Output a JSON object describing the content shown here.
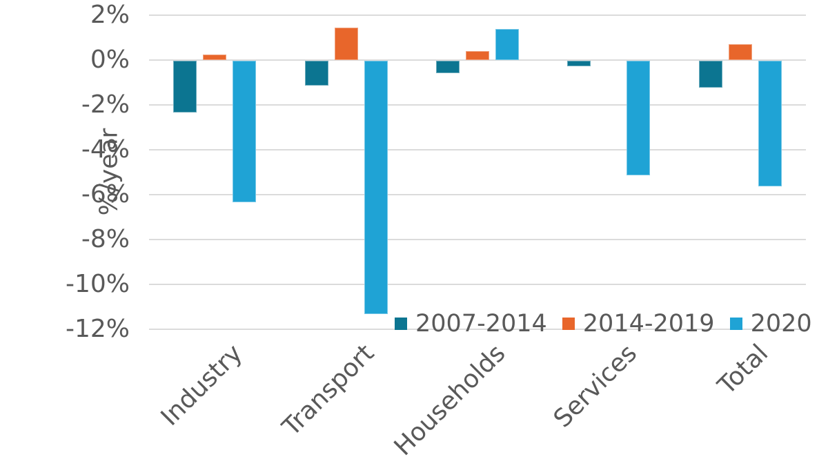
{
  "chart_data": {
    "type": "bar",
    "categories": [
      "Industry",
      "Transport",
      "Households",
      "Services",
      "Total"
    ],
    "series": [
      {
        "name": "2007-2014",
        "color": "#0C7591",
        "values": [
          -2.3,
          -1.1,
          -0.55,
          -0.25,
          -1.2
        ]
      },
      {
        "name": "2014-2019",
        "color": "#E8662B",
        "values": [
          0.25,
          1.45,
          0.4,
          0.0,
          0.7
        ]
      },
      {
        "name": "2020",
        "color": "#1FA3D5",
        "values": [
          -6.3,
          -11.3,
          1.4,
          -5.1,
          -5.6
        ]
      }
    ],
    "title": "",
    "xlabel": "",
    "ylabel": "%/year",
    "ylim": [
      -12,
      2
    ],
    "ytick_step": 2,
    "ytick_labels": [
      "2%",
      "0%",
      "-2%",
      "-4%",
      "-6%",
      "-8%",
      "-10%",
      "-12%"
    ],
    "grid": true,
    "legend_position": "bottom-right"
  },
  "styles": {
    "text_color": "#595959",
    "grid_color": "#dbdbdb",
    "background": "#ffffff"
  }
}
